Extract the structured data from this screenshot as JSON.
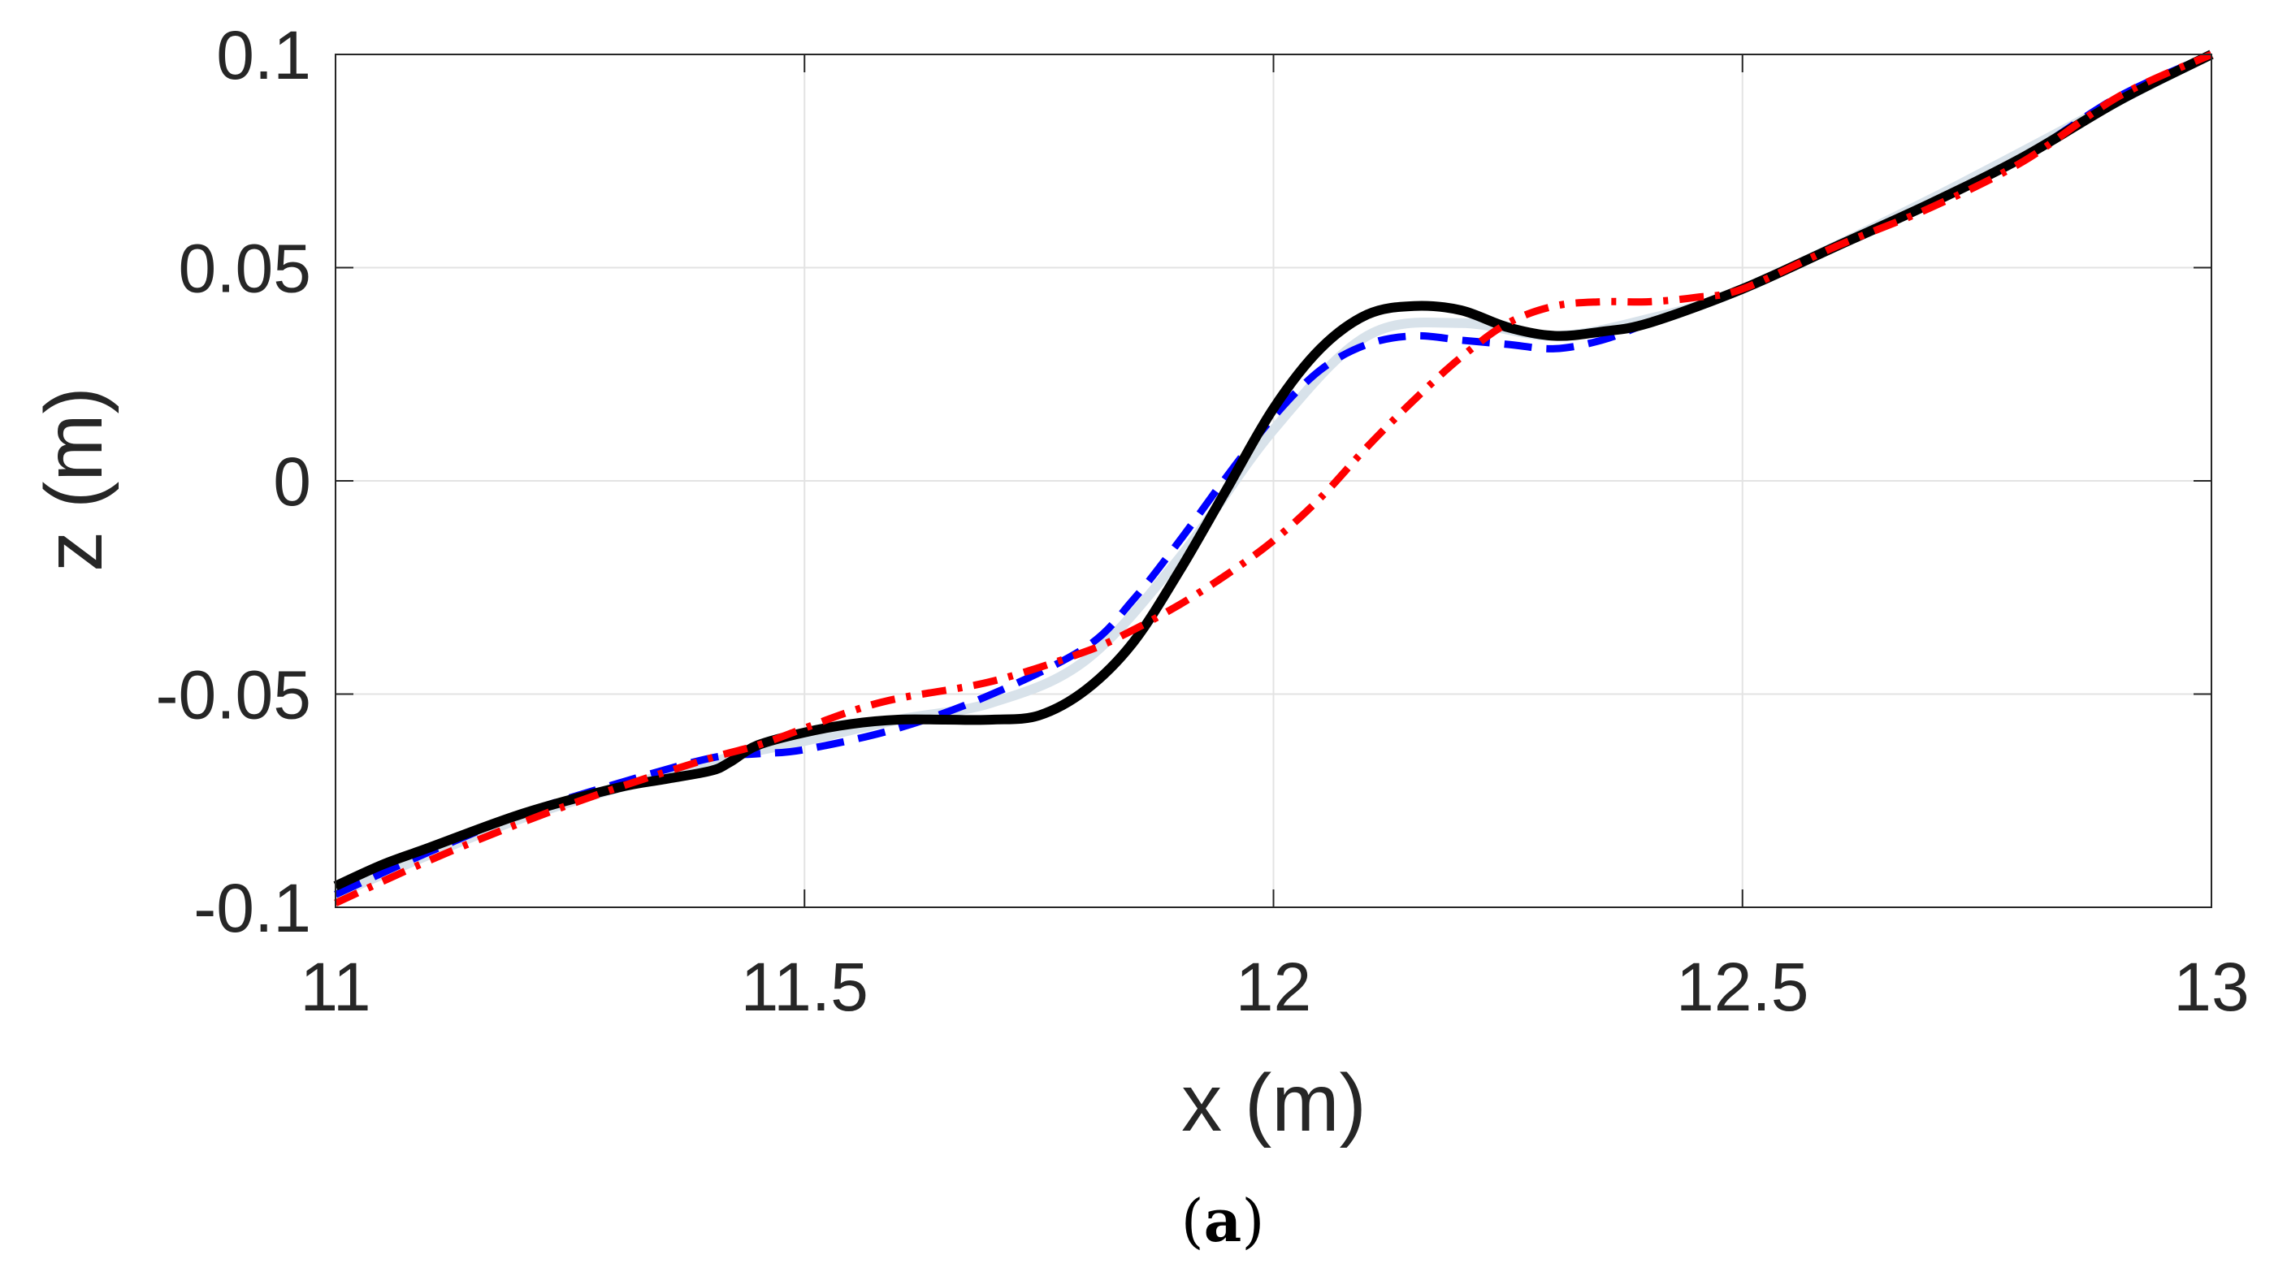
{
  "chart_data": {
    "type": "line",
    "title": "",
    "xlabel": "x (m)",
    "ylabel": "z (m)",
    "xlim": [
      11,
      13
    ],
    "ylim": [
      -0.1,
      0.1
    ],
    "grid": true,
    "xticks": [
      11,
      11.5,
      12,
      12.5,
      13
    ],
    "xtick_labels": [
      "11",
      "11.5",
      "12",
      "12.5",
      "13"
    ],
    "yticks": [
      -0.1,
      -0.05,
      0,
      0.05,
      0.1
    ],
    "ytick_labels": [
      "-0.1",
      "-0.05",
      "0",
      "0.05",
      "0.1"
    ],
    "series": [
      {
        "name": "series-light",
        "color": "#d8e2ea",
        "style": "solid",
        "x": [
          11.0,
          11.2,
          11.4,
          11.5,
          11.6,
          11.7,
          11.8,
          11.9,
          12.0,
          12.1,
          12.2,
          12.3,
          12.4,
          12.5,
          12.7,
          12.9,
          13.0
        ],
        "y": [
          -0.097,
          -0.079,
          -0.066,
          -0.061,
          -0.056,
          -0.052,
          -0.042,
          -0.018,
          0.012,
          0.034,
          0.037,
          0.034,
          0.038,
          0.045,
          0.066,
          0.089,
          0.1
        ]
      },
      {
        "name": "series-blue-dashed",
        "color": "#0000ff",
        "style": "dashed",
        "x": [
          11.0,
          11.1,
          11.2,
          11.3,
          11.4,
          11.45,
          11.5,
          11.6,
          11.7,
          11.8,
          11.85,
          11.9,
          11.95,
          12.0,
          12.05,
          12.1,
          12.15,
          12.2,
          12.25,
          12.3,
          12.35,
          12.4,
          12.5,
          12.6,
          12.7,
          12.8,
          12.9,
          13.0
        ],
        "y": [
          -0.097,
          -0.087,
          -0.078,
          -0.071,
          -0.065,
          -0.064,
          -0.063,
          -0.058,
          -0.05,
          -0.039,
          -0.028,
          -0.014,
          0.001,
          0.015,
          0.026,
          0.032,
          0.034,
          0.033,
          0.032,
          0.031,
          0.033,
          0.037,
          0.045,
          0.055,
          0.065,
          0.076,
          0.09,
          0.1
        ]
      },
      {
        "name": "series-black-solid",
        "color": "#000000",
        "style": "solid",
        "x": [
          11.0,
          11.05,
          11.1,
          11.2,
          11.3,
          11.35,
          11.4,
          11.42,
          11.45,
          11.5,
          11.55,
          11.6,
          11.65,
          11.7,
          11.75,
          11.8,
          11.85,
          11.9,
          11.95,
          12.0,
          12.05,
          12.1,
          12.15,
          12.2,
          12.25,
          12.3,
          12.35,
          12.4,
          12.5,
          12.6,
          12.7,
          12.8,
          12.9,
          13.0
        ],
        "y": [
          -0.095,
          -0.09,
          -0.086,
          -0.078,
          -0.072,
          -0.07,
          -0.068,
          -0.066,
          -0.062,
          -0.059,
          -0.057,
          -0.056,
          -0.056,
          -0.056,
          -0.055,
          -0.049,
          -0.038,
          -0.021,
          -0.002,
          0.017,
          0.031,
          0.039,
          0.041,
          0.04,
          0.036,
          0.034,
          0.035,
          0.037,
          0.045,
          0.055,
          0.065,
          0.076,
          0.089,
          0.1
        ]
      },
      {
        "name": "series-red-dashdot",
        "color": "#ff0000",
        "style": "dashdot",
        "x": [
          11.0,
          11.1,
          11.2,
          11.3,
          11.4,
          11.45,
          11.5,
          11.55,
          11.6,
          11.7,
          11.8,
          11.85,
          11.9,
          11.95,
          12.0,
          12.05,
          12.1,
          12.15,
          12.2,
          12.25,
          12.3,
          12.35,
          12.4,
          12.45,
          12.5,
          12.6,
          12.7,
          12.8,
          12.9,
          13.0
        ],
        "y": [
          -0.099,
          -0.089,
          -0.08,
          -0.072,
          -0.065,
          -0.062,
          -0.058,
          -0.054,
          -0.051,
          -0.047,
          -0.04,
          -0.035,
          -0.029,
          -0.022,
          -0.014,
          -0.004,
          0.008,
          0.019,
          0.029,
          0.037,
          0.041,
          0.042,
          0.042,
          0.043,
          0.045,
          0.055,
          0.064,
          0.075,
          0.09,
          0.1
        ]
      }
    ]
  },
  "caption": {
    "open": "(",
    "letter": "a",
    "close": ")"
  }
}
